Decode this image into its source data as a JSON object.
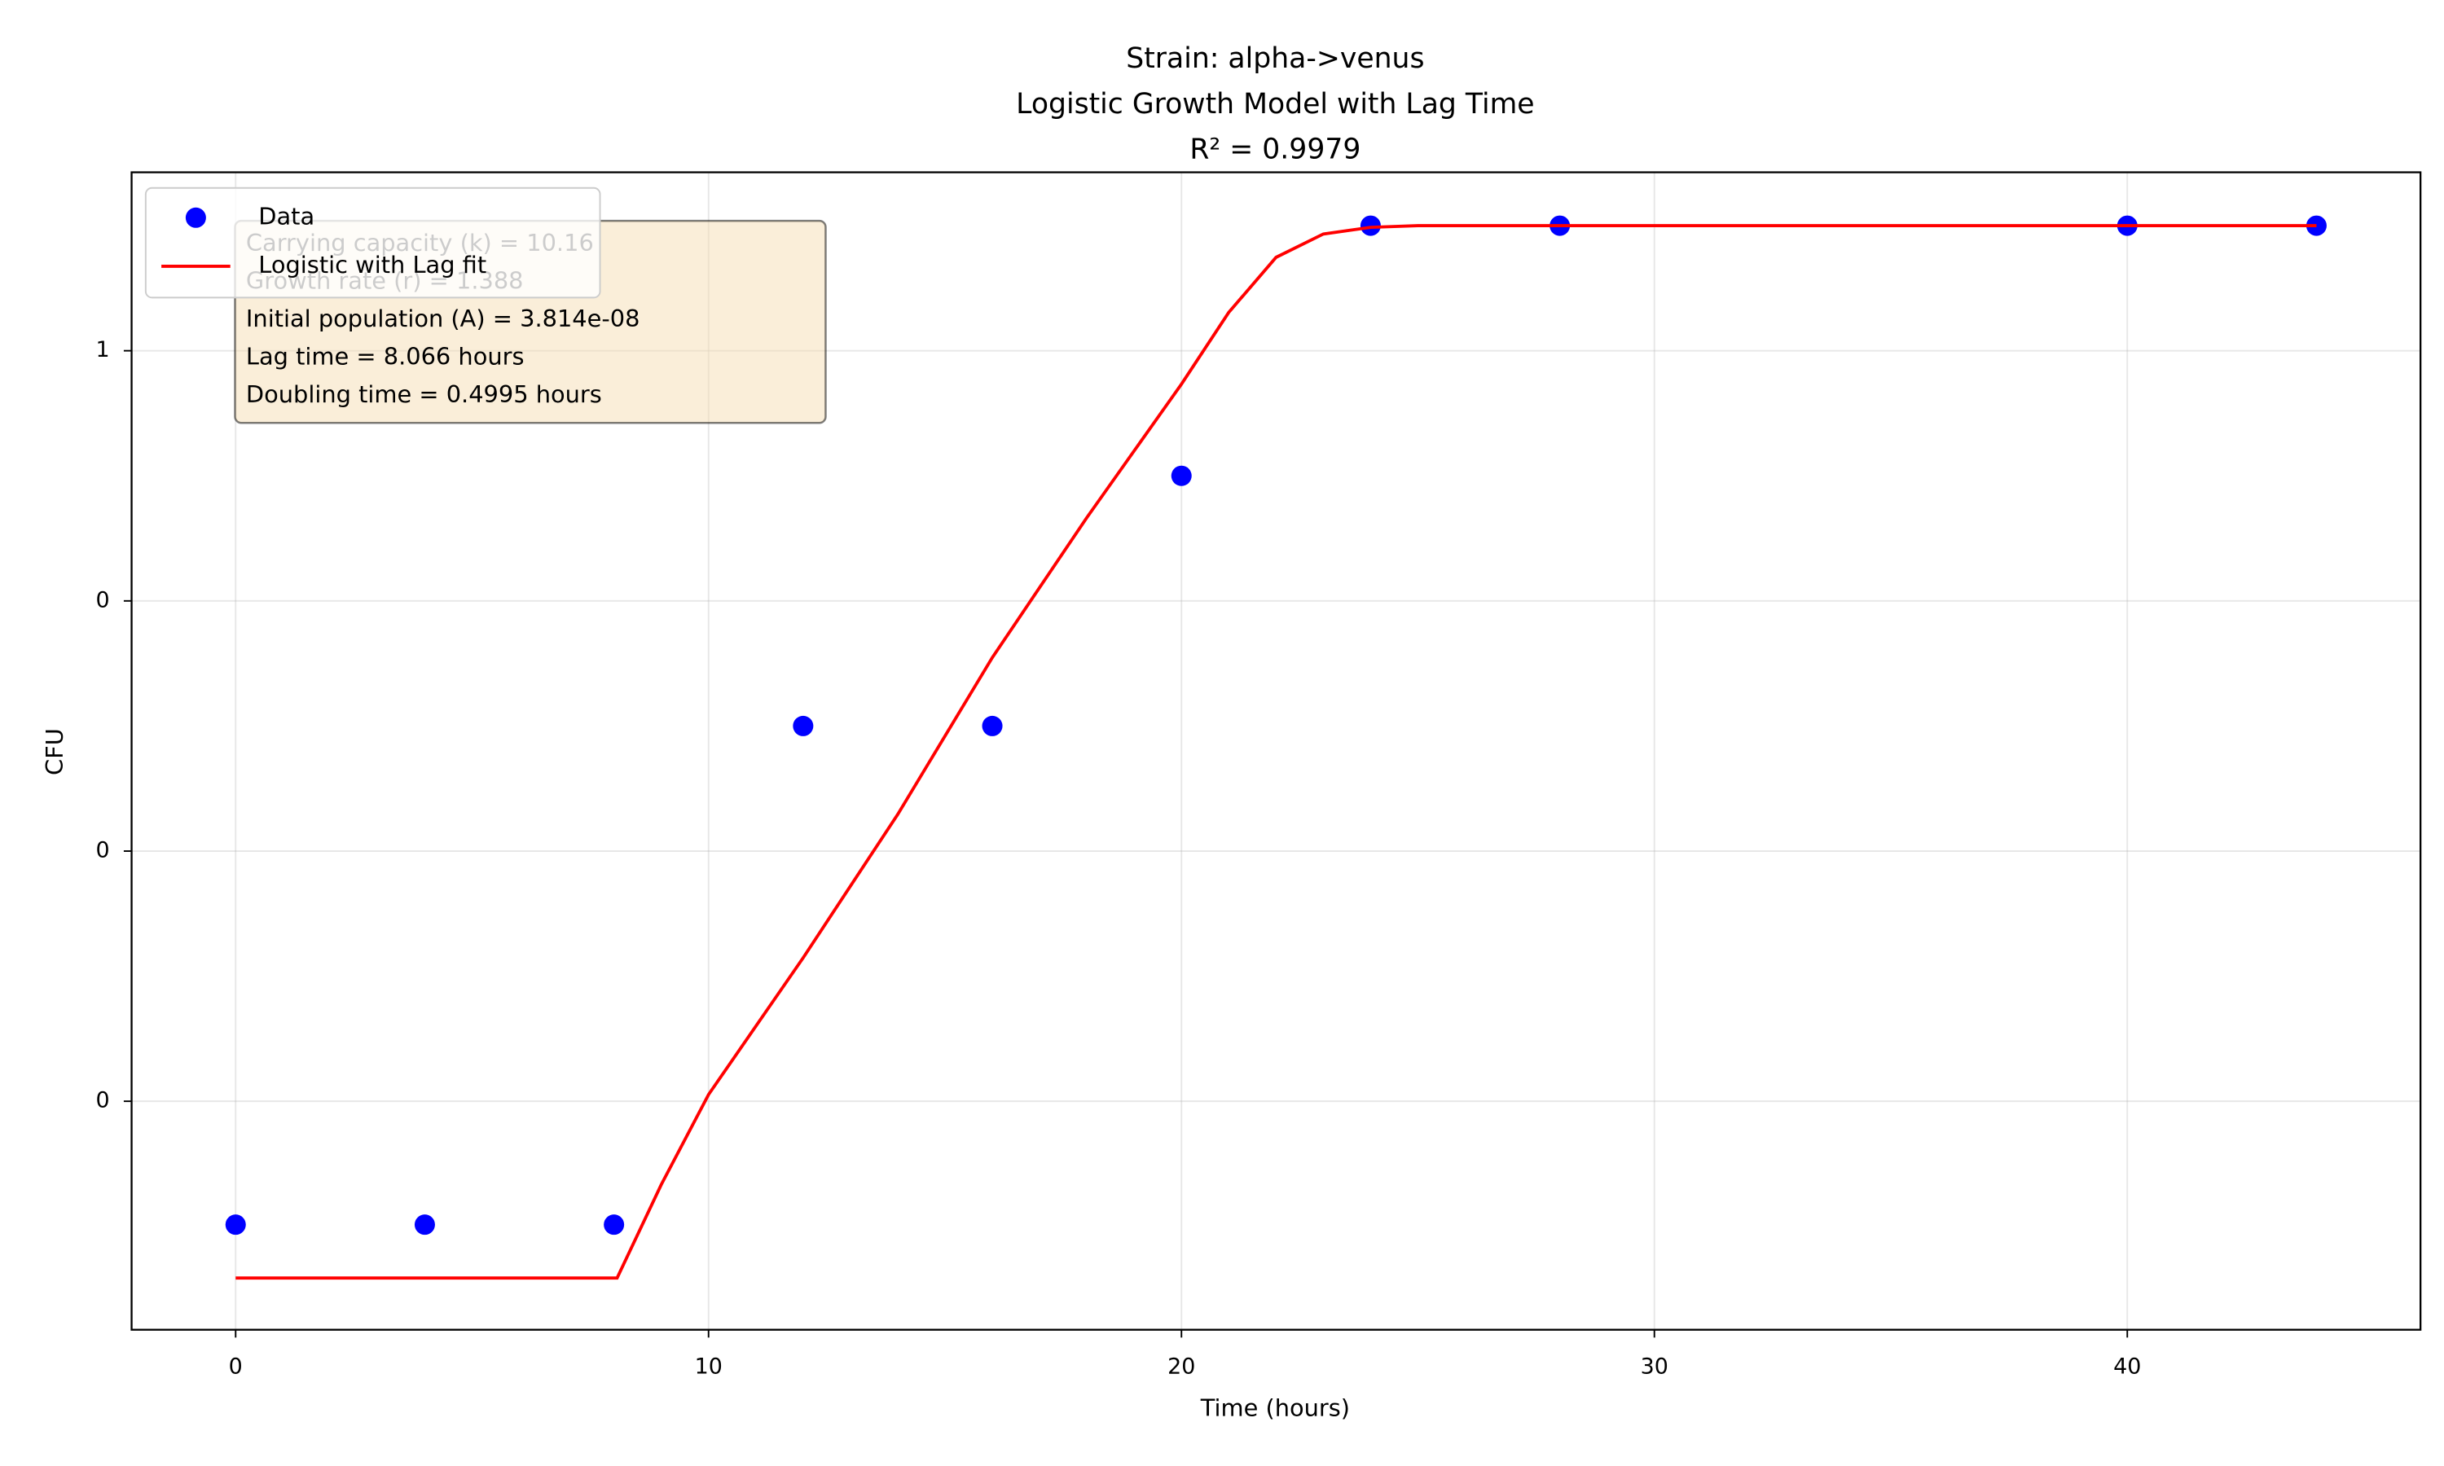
{
  "chart_data": {
    "type": "scatter",
    "title": [
      "Strain: alpha->venus",
      "Logistic Growth Model with Lag Time",
      "R² = 0.9979"
    ],
    "x_label": "Time (hours)",
    "y_label": "CFU",
    "xlim": [
      -2.2,
      46.2
    ],
    "ylim": [
      -0.037,
      0.657
    ],
    "xticks": [
      0,
      10,
      20,
      30,
      40
    ],
    "yticks": [
      {
        "value": 0.1,
        "label": "0"
      },
      {
        "value": 0.25,
        "label": "0"
      },
      {
        "value": 0.4,
        "label": "0"
      },
      {
        "value": 0.55,
        "label": "1"
      }
    ],
    "grid": true,
    "legend": "upper left",
    "series": [
      {
        "name": "Data",
        "type": "scatter",
        "color": "#0000ff",
        "x": [
          0,
          4,
          8,
          12,
          16,
          20,
          24,
          28,
          40,
          44
        ],
        "values": [
          0.026,
          0.026,
          0.026,
          0.325,
          0.325,
          0.475,
          0.625,
          0.625,
          0.625,
          0.625
        ]
      },
      {
        "name": "Logistic with Lag fit",
        "type": "line",
        "color": "#ff0000",
        "x": [
          0,
          8.066,
          9,
          10,
          12,
          14,
          16,
          18,
          20,
          21,
          22,
          23,
          24,
          25,
          26,
          30,
          44
        ],
        "values": [
          -0.006,
          -0.006,
          0.05,
          0.104,
          0.186,
          0.272,
          0.366,
          0.45,
          0.53,
          0.573,
          0.606,
          0.62,
          0.624,
          0.625,
          0.625,
          0.625,
          0.625
        ]
      }
    ],
    "annotation": [
      "Carrying capacity (k) = 10.16",
      "Growth rate (r) = 1.388",
      "Initial population (A) = 3.814e-08",
      "Lag time = 8.066 hours",
      "Doubling time = 0.4995 hours"
    ]
  }
}
